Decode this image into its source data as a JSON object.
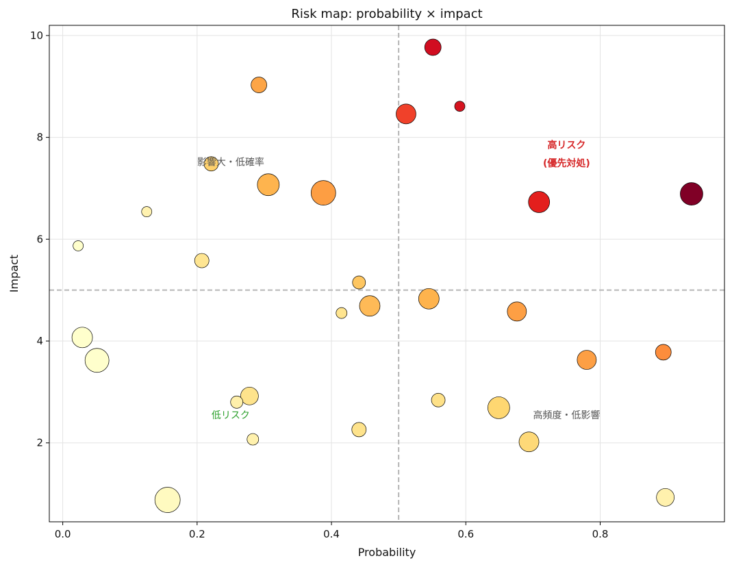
{
  "chart_data": {
    "type": "scatter",
    "title": "Risk map: probability × impact",
    "xlabel": "Probability",
    "ylabel": "Impact",
    "xlim": [
      -0.02,
      0.985
    ],
    "ylim": [
      0.45,
      10.2
    ],
    "xticks": [
      "0.0",
      "0.2",
      "0.4",
      "0.6",
      "0.8"
    ],
    "yticks": [
      "2",
      "4",
      "6",
      "8",
      "10"
    ],
    "grid": true,
    "threshold_x": 0.5,
    "threshold_y": 5.0,
    "colormap": "YlOrRd",
    "points": [
      {
        "x": 0.551,
        "y": 9.77,
        "size": 24,
        "color": "#d10d20"
      },
      {
        "x": 0.292,
        "y": 9.03,
        "size": 23,
        "color": "#fda546"
      },
      {
        "x": 0.511,
        "y": 8.46,
        "size": 29,
        "color": "#f0412a"
      },
      {
        "x": 0.591,
        "y": 8.61,
        "size": 15,
        "color": "#d5131f"
      },
      {
        "x": 0.221,
        "y": 7.48,
        "size": 21,
        "color": "#fed16d"
      },
      {
        "x": 0.306,
        "y": 7.07,
        "size": 32,
        "color": "#feb44e"
      },
      {
        "x": 0.388,
        "y": 6.91,
        "size": 36,
        "color": "#fd9e43"
      },
      {
        "x": 0.709,
        "y": 6.73,
        "size": 31,
        "color": "#e31f1d"
      },
      {
        "x": 0.936,
        "y": 6.89,
        "size": 33,
        "color": "#800026"
      },
      {
        "x": 0.125,
        "y": 6.54,
        "size": 15,
        "color": "#fff2b0"
      },
      {
        "x": 0.023,
        "y": 5.87,
        "size": 15,
        "color": "#ffffcc"
      },
      {
        "x": 0.207,
        "y": 5.58,
        "size": 21,
        "color": "#fee592"
      },
      {
        "x": 0.441,
        "y": 5.15,
        "size": 19,
        "color": "#fec661"
      },
      {
        "x": 0.545,
        "y": 4.83,
        "size": 30,
        "color": "#feb34d"
      },
      {
        "x": 0.457,
        "y": 4.69,
        "size": 30,
        "color": "#feba57"
      },
      {
        "x": 0.415,
        "y": 4.55,
        "size": 16,
        "color": "#ffe590"
      },
      {
        "x": 0.676,
        "y": 4.58,
        "size": 28,
        "color": "#fd9f44"
      },
      {
        "x": 0.029,
        "y": 4.07,
        "size": 30,
        "color": "#ffffcc"
      },
      {
        "x": 0.051,
        "y": 3.62,
        "size": 35,
        "color": "#ffffcc"
      },
      {
        "x": 0.78,
        "y": 3.63,
        "size": 28,
        "color": "#fd9f44"
      },
      {
        "x": 0.894,
        "y": 3.78,
        "size": 23,
        "color": "#fd8d3c"
      },
      {
        "x": 0.278,
        "y": 2.92,
        "size": 26,
        "color": "#fee38c"
      },
      {
        "x": 0.259,
        "y": 2.8,
        "size": 18,
        "color": "#fff0ab"
      },
      {
        "x": 0.559,
        "y": 2.84,
        "size": 20,
        "color": "#fee188"
      },
      {
        "x": 0.649,
        "y": 2.69,
        "size": 32,
        "color": "#fed771"
      },
      {
        "x": 0.283,
        "y": 2.07,
        "size": 17,
        "color": "#fff1ad"
      },
      {
        "x": 0.441,
        "y": 2.26,
        "size": 21,
        "color": "#fee38c"
      },
      {
        "x": 0.694,
        "y": 2.02,
        "size": 29,
        "color": "#fed978"
      },
      {
        "x": 0.156,
        "y": 0.88,
        "size": 37,
        "color": "#fffac0"
      },
      {
        "x": 0.897,
        "y": 0.93,
        "size": 26,
        "color": "#fff1ad"
      }
    ],
    "annotations": [
      {
        "text": "高リスク",
        "x": 0.75,
        "y": 7.85,
        "color": "#d62728",
        "bold": true
      },
      {
        "text": "(優先対処)",
        "x": 0.75,
        "y": 7.5,
        "color": "#d62728",
        "bold": true
      },
      {
        "text": "影響大・低確率",
        "x": 0.25,
        "y": 7.52,
        "color": "#555555",
        "bold": false
      },
      {
        "text": "低リスク",
        "x": 0.25,
        "y": 2.55,
        "color": "#2ca02c",
        "bold": false
      },
      {
        "text": "高頻度・低影響",
        "x": 0.75,
        "y": 2.55,
        "color": "#555555",
        "bold": false
      }
    ]
  }
}
